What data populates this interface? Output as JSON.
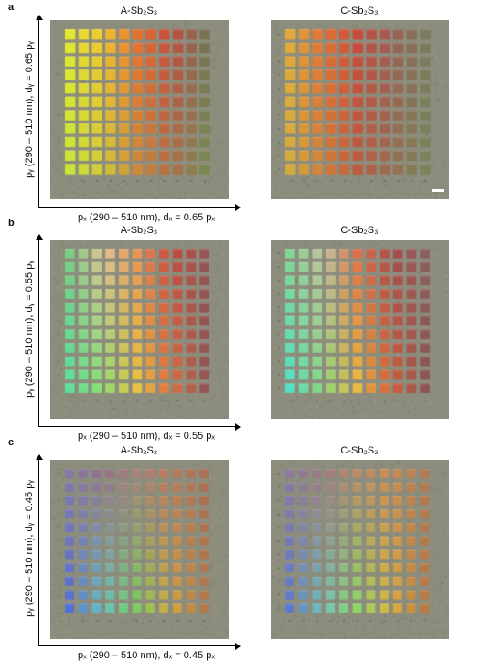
{
  "panels": [
    {
      "letter": "a",
      "left_title": "A-Sb₂S₃",
      "right_title": "C-Sb₂S₃",
      "xlabel": "pₓ (290 – 510 nm), dₓ = 0.65 pₓ",
      "ylabel": "pᵧ (290 – 510 nm), dᵧ = 0.65 pᵧ"
    },
    {
      "letter": "b",
      "left_title": "A-Sb₂S₃",
      "right_title": "C-Sb₂S₃",
      "xlabel": "pₓ (290 – 510 nm), dₓ = 0.55 pₓ",
      "ylabel": "pᵧ (290 – 510 nm), dᵧ = 0.55 pᵧ"
    },
    {
      "letter": "c",
      "left_title": "A-Sb₂S₃",
      "right_title": "C-Sb₂S₃",
      "xlabel": "pₓ (290 – 510 nm), dₓ = 0.45 pₓ",
      "ylabel": "pᵧ (290 – 510 nm), dᵧ = 0.45 pᵧ"
    }
  ],
  "colors": {
    "substrate": "#8c8c7c"
  }
}
